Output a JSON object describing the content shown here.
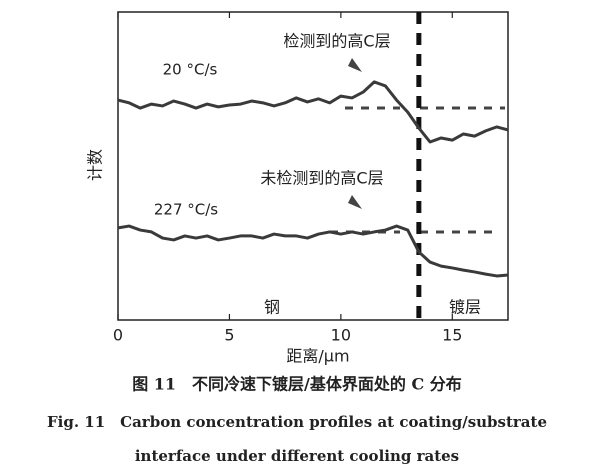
{
  "chart_data": {
    "type": "line",
    "x": [
      0,
      0.5,
      1,
      1.5,
      2,
      2.5,
      3,
      3.5,
      4,
      4.5,
      5,
      5.5,
      6,
      6.5,
      7,
      7.5,
      8,
      8.5,
      9,
      9.5,
      10,
      10.5,
      11,
      11.5,
      12,
      12.5,
      13,
      13.5,
      14,
      14.5,
      15,
      15.5,
      16,
      16.5,
      17,
      17.5
    ],
    "series": [
      {
        "name": "20 °C/s",
        "color": "#3a3a3a",
        "values": [
          71.4,
          70.5,
          68.8,
          70.1,
          69.5,
          71.1,
          70.1,
          68.8,
          70.1,
          69.2,
          69.8,
          70.1,
          71.1,
          70.5,
          69.5,
          70.5,
          72.1,
          70.8,
          71.8,
          70.5,
          72.7,
          72.1,
          74.0,
          77.3,
          76.0,
          71.4,
          67.5,
          62.3,
          57.8,
          59.1,
          58.4,
          60.4,
          59.7,
          61.4,
          62.7,
          61.7
        ]
      },
      {
        "name": "227 °C/s",
        "color": "#3a3a3a",
        "values": [
          29.9,
          30.5,
          29.2,
          28.6,
          26.6,
          26.0,
          27.3,
          26.6,
          27.3,
          26.0,
          26.6,
          27.3,
          27.3,
          26.6,
          27.9,
          27.3,
          27.3,
          26.6,
          27.9,
          28.6,
          27.9,
          28.6,
          27.9,
          28.6,
          29.2,
          30.5,
          29.2,
          22.1,
          18.8,
          17.5,
          16.9,
          16.2,
          15.6,
          14.9,
          14.3,
          14.6
        ]
      }
    ],
    "xlim": [
      0,
      17.5
    ],
    "xticks": [
      0,
      5,
      10,
      15
    ],
    "ylim": [
      0,
      100
    ],
    "xlabel": "距离/μm",
    "ylabel": "计数",
    "interface_x": 13.5,
    "annotations": [
      "检测到的高C层",
      "未检测到的高C层"
    ],
    "region_labels": [
      "钢",
      "镀层"
    ]
  },
  "caption": {
    "zh": "图 11　不同冷速下镀层/基体界面处的 C 分布",
    "en_line1": "Fig. 11　Carbon concentration profiles at coating/substrate",
    "en_line2": "interface under different cooling rates"
  }
}
